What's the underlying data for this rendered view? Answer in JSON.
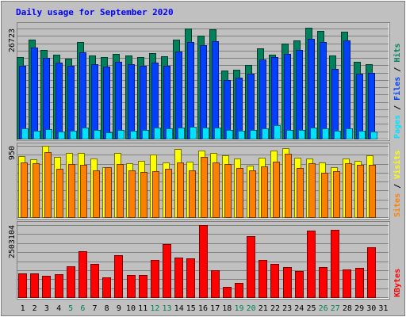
{
  "chart_data": {
    "title": "Daily usage for September 2020",
    "days": [
      "1",
      "2",
      "3",
      "4",
      "5",
      "6",
      "7",
      "8",
      "9",
      "10",
      "11",
      "12",
      "13",
      "14",
      "15",
      "16",
      "17",
      "18",
      "19",
      "20",
      "21",
      "22",
      "23",
      "24",
      "25",
      "26",
      "27",
      "28",
      "29",
      "30",
      "31"
    ],
    "weekend_days": [
      "5",
      "6",
      "12",
      "13",
      "19",
      "20",
      "26",
      "27"
    ],
    "colors": {
      "hits": "#00805c",
      "files": "#0040ff",
      "pages": "#00e0ff",
      "visits": "#ffff00",
      "sites": "#ff8000",
      "kbytes": "#ff0000",
      "title": "#0000ff",
      "weekday_label": "#000000",
      "weekend_label": "#00805c"
    },
    "panels": [
      {
        "type": "bar",
        "ymax_label": "26723",
        "ymax": 26723,
        "legend": [
          {
            "key": "pages",
            "text": "Pages"
          },
          {
            "key": "sep",
            "text": " / "
          },
          {
            "key": "files",
            "text": "Files"
          },
          {
            "key": "sep",
            "text": " / "
          },
          {
            "key": "hits",
            "text": "Hits"
          }
        ],
        "series": [
          {
            "name": "Hits",
            "key": "hits",
            "values": [
              19890,
              23960,
              21580,
              20350,
              19510,
              23500,
              20140,
              19790,
              20530,
              20180,
              19880,
              20720,
              19940,
              24020,
              26720,
              25020,
              26500,
              16460,
              16740,
              17790,
              21830,
              20310,
              22990,
              23790,
              26850,
              26150,
              20280,
              26050,
              18570,
              18090,
              0
            ]
          },
          {
            "name": "Files",
            "key": "files",
            "values": [
              17780,
              22040,
              19580,
              18460,
              17650,
              21010,
              18040,
              17500,
              18580,
              18010,
              17670,
              18510,
              17680,
              21230,
              23430,
              22720,
              23600,
              14310,
              14770,
              15720,
              19230,
              19850,
              20580,
              21500,
              24270,
              23520,
              16880,
              23760,
              15860,
              16050,
              0
            ]
          },
          {
            "name": "Pages",
            "key": "pages",
            "values": [
              2430,
              1840,
              2310,
              1740,
              1930,
              2690,
              2160,
              1620,
              2110,
              1940,
              2160,
              2700,
              2530,
              2760,
              2860,
              2660,
              2730,
              2120,
              2010,
              2090,
              2490,
              3180,
              2040,
              2180,
              2780,
              2470,
              1980,
              2490,
              1940,
              1680,
              0
            ]
          }
        ]
      },
      {
        "type": "bar",
        "ymax_label": "950",
        "ymax": 950,
        "legend": [
          {
            "key": "sites",
            "text": "Sites"
          },
          {
            "key": "sep",
            "text": " / "
          },
          {
            "key": "visits",
            "text": "Visits"
          }
        ],
        "series": [
          {
            "name": "Visits",
            "key": "visits",
            "values": [
              810,
              770,
              950,
              800,
              860,
              860,
              780,
              670,
              860,
              720,
              750,
              830,
              730,
              910,
              740,
              890,
              860,
              820,
              780,
              690,
              790,
              890,
              920,
              790,
              780,
              730,
              670,
              780,
              750,
              820,
              0
            ]
          },
          {
            "name": "Sites",
            "key": "sites",
            "values": [
              730,
              720,
              870,
              640,
              710,
              700,
              620,
              660,
              710,
              620,
              600,
              610,
              640,
              730,
              620,
              800,
              730,
              710,
              650,
              620,
              680,
              740,
              840,
              650,
              720,
              590,
              610,
              720,
              700,
              700,
              0
            ]
          }
        ]
      },
      {
        "type": "bar",
        "ymax_label": "2503104",
        "ymax": 2503104,
        "legend": [
          {
            "key": "kbytes",
            "text": "KBytes"
          }
        ],
        "series": [
          {
            "name": "KBytes",
            "key": "kbytes",
            "values": [
              827000,
              827000,
              735000,
              788000,
              1067000,
              1597000,
              1158000,
              676000,
              1463000,
              757000,
              778000,
              1304000,
              1845000,
              1387000,
              1345000,
              2503000,
              927000,
              350000,
              507000,
              2129000,
              1304000,
              1158000,
              1047000,
              920000,
              2318000,
              1047000,
              2350000,
              950000,
              1017000,
              1740000,
              0
            ]
          }
        ]
      }
    ]
  }
}
